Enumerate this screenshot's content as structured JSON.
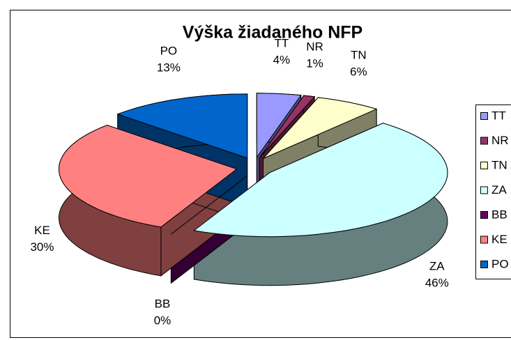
{
  "chart_data": {
    "type": "pie3d",
    "title": "Výška žiadaného NFP",
    "categories": [
      "TT",
      "NR",
      "TN",
      "ZA",
      "BB",
      "KE",
      "PO"
    ],
    "values": [
      4,
      1,
      6,
      46,
      0,
      30,
      13
    ],
    "value_labels": [
      "4%",
      "1%",
      "6%",
      "46%",
      "0%",
      "30%",
      "13%"
    ],
    "colors": [
      "#9999ff",
      "#993366",
      "#ffffcc",
      "#ccffff",
      "#660066",
      "#ff8080",
      "#0066cc"
    ],
    "legend": "right"
  }
}
